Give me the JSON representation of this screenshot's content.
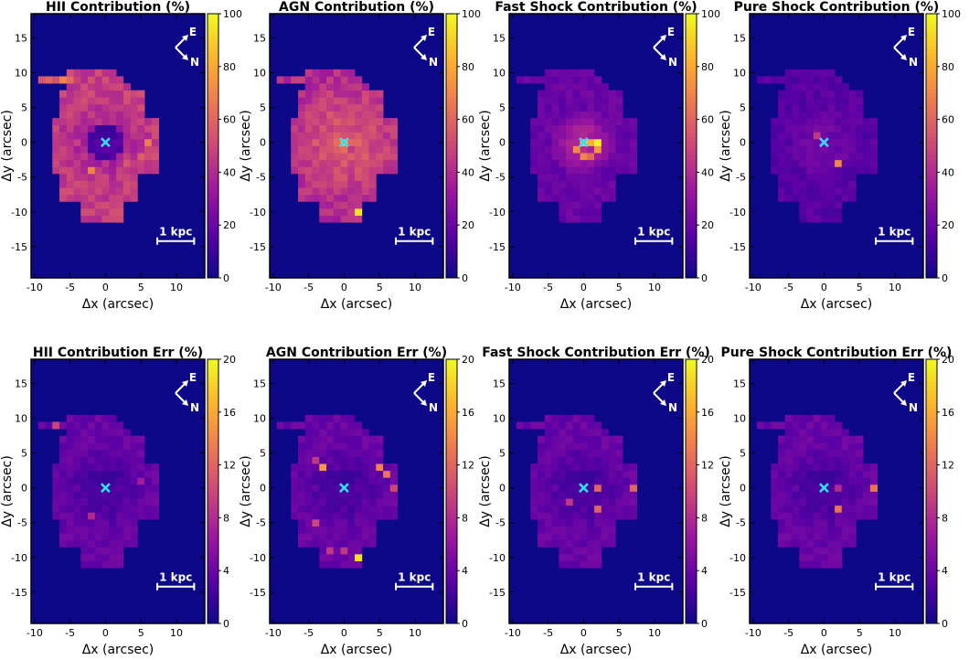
{
  "figure": {
    "compass": {
      "east": "E",
      "north": "N"
    },
    "center_marker": "×",
    "colors": {
      "marker": "#33ddff",
      "scalebar": "#ffffff",
      "background": "#0d0887"
    },
    "colormap": [
      "#0d0887",
      "#5c01a6",
      "#9c179e",
      "#cc4778",
      "#ed7953",
      "#fdb42f",
      "#f0f921"
    ]
  },
  "chart_data": [
    {
      "type": "heatmap",
      "title": "HII Contribution (%)",
      "xlabel": "Δx (arcsec)",
      "ylabel": "Δy (arcsec)",
      "xlim": [
        -10.5,
        14
      ],
      "ylim": [
        -19.5,
        18.5
      ],
      "xticks": [
        -10,
        -5,
        0,
        5,
        10
      ],
      "yticks": [
        15,
        10,
        5,
        0,
        -5,
        -10,
        -15
      ],
      "colorbar": {
        "min": 0,
        "max": 100,
        "ticks": [
          0,
          20,
          40,
          60,
          80,
          100
        ]
      },
      "scalebar_label": "1 kpc",
      "center": [
        0,
        0
      ],
      "field": "HII",
      "hotspots": [
        [
          -9,
          9,
          55
        ],
        [
          -8,
          9,
          60
        ],
        [
          -6,
          9,
          70
        ],
        [
          -5,
          9,
          62
        ],
        [
          -2,
          -4,
          70
        ],
        [
          6,
          0,
          68
        ],
        [
          5,
          -2,
          58
        ],
        [
          3,
          -3,
          55
        ]
      ]
    },
    {
      "type": "heatmap",
      "title": "AGN Contribution (%)",
      "xlabel": "Δx (arcsec)",
      "ylabel": "Δy (arcsec)",
      "xlim": [
        -10.5,
        14
      ],
      "ylim": [
        -19.5,
        18.5
      ],
      "xticks": [
        -10,
        -5,
        0,
        5,
        10
      ],
      "yticks": [
        15,
        10,
        5,
        0,
        -5,
        -10,
        -15
      ],
      "colorbar": {
        "min": 0,
        "max": 100,
        "ticks": [
          0,
          20,
          40,
          60,
          80,
          100
        ]
      },
      "scalebar_label": "1 kpc",
      "center": [
        0,
        0
      ],
      "field": "AGN",
      "hotspots": [
        [
          2,
          -10,
          95
        ],
        [
          0,
          0,
          85
        ],
        [
          -1,
          1,
          58
        ],
        [
          1,
          -1,
          45
        ],
        [
          -3,
          2,
          55
        ]
      ]
    },
    {
      "type": "heatmap",
      "title": "Fast Shock Contribution (%)",
      "xlabel": "Δx (arcsec)",
      "ylabel": "Δy (arcsec)",
      "xlim": [
        -10.5,
        14
      ],
      "ylim": [
        -19.5,
        18.5
      ],
      "xticks": [
        -10,
        -5,
        0,
        5,
        10
      ],
      "yticks": [
        15,
        10,
        5,
        0,
        -5,
        -10,
        -15
      ],
      "colorbar": {
        "min": 0,
        "max": 100,
        "ticks": [
          0,
          20,
          40,
          60,
          80,
          100
        ]
      },
      "scalebar_label": "1 kpc",
      "center": [
        0,
        0
      ],
      "field": "FAST",
      "hotspots": [
        [
          0,
          0,
          95
        ],
        [
          2,
          0,
          98
        ],
        [
          1,
          0,
          82
        ],
        [
          -1,
          -1,
          72
        ],
        [
          0,
          -2,
          70
        ],
        [
          1,
          -2,
          62
        ],
        [
          2,
          -1,
          75
        ]
      ]
    },
    {
      "type": "heatmap",
      "title": "Pure Shock Contribution (%)",
      "xlabel": "Δx (arcsec)",
      "ylabel": "Δy (arcsec)",
      "xlim": [
        -10.5,
        14
      ],
      "ylim": [
        -19.5,
        18.5
      ],
      "xticks": [
        -10,
        -5,
        0,
        5,
        10
      ],
      "yticks": [
        15,
        10,
        5,
        0,
        -5,
        -10,
        -15
      ],
      "colorbar": {
        "min": 0,
        "max": 100,
        "ticks": [
          0,
          20,
          40,
          60,
          80,
          100
        ]
      },
      "scalebar_label": "1 kpc",
      "center": [
        0,
        0
      ],
      "field": "PURE",
      "hotspots": [
        [
          2,
          -3,
          70
        ],
        [
          -1,
          1,
          45
        ]
      ]
    },
    {
      "type": "heatmap",
      "title": "HII Contribution Err (%)",
      "xlabel": "Δx (arcsec)",
      "ylabel": "Δy (arcsec)",
      "xlim": [
        -10.5,
        14
      ],
      "ylim": [
        -19.5,
        18.5
      ],
      "xticks": [
        -10,
        -5,
        0,
        5,
        10
      ],
      "yticks": [
        15,
        10,
        5,
        0,
        -5,
        -10,
        -15
      ],
      "colorbar": {
        "min": 0,
        "max": 20,
        "ticks": [
          0,
          4,
          8,
          12,
          16,
          20
        ]
      },
      "scalebar_label": "1 kpc",
      "center": [
        0,
        0
      ],
      "field": "ERR",
      "hotspots": [
        [
          -7,
          9,
          10
        ],
        [
          -2,
          -4,
          8
        ],
        [
          5,
          1,
          7
        ]
      ]
    },
    {
      "type": "heatmap",
      "title": "AGN Contribution Err (%)",
      "xlabel": "Δx (arcsec)",
      "ylabel": "Δy (arcsec)",
      "xlim": [
        -10.5,
        14
      ],
      "ylim": [
        -19.5,
        18.5
      ],
      "xticks": [
        -10,
        -5,
        0,
        5,
        10
      ],
      "yticks": [
        15,
        10,
        5,
        0,
        -5,
        -10,
        -15
      ],
      "colorbar": {
        "min": 0,
        "max": 20,
        "ticks": [
          0,
          4,
          8,
          12,
          16,
          20
        ]
      },
      "scalebar_label": "1 kpc",
      "center": [
        0,
        0
      ],
      "field": "ERR",
      "hotspots": [
        [
          2,
          -10,
          19
        ],
        [
          -3,
          3,
          15
        ],
        [
          5,
          3,
          14
        ],
        [
          6,
          2,
          13
        ],
        [
          -4,
          -5,
          10
        ],
        [
          -2,
          -9,
          9
        ],
        [
          0,
          -9,
          9
        ],
        [
          7,
          0,
          10
        ],
        [
          -4,
          4,
          9
        ]
      ]
    },
    {
      "type": "heatmap",
      "title": "Fast Shock Contribution Err (%)",
      "xlabel": "Δx (arcsec)",
      "ylabel": "Δy (arcsec)",
      "xlim": [
        -10.5,
        14
      ],
      "ylim": [
        -19.5,
        18.5
      ],
      "xticks": [
        -10,
        -5,
        0,
        5,
        10
      ],
      "yticks": [
        15,
        10,
        5,
        0,
        -5,
        -10,
        -15
      ],
      "colorbar": {
        "min": 0,
        "max": 20,
        "ticks": [
          0,
          4,
          8,
          12,
          16,
          20
        ]
      },
      "scalebar_label": "1 kpc",
      "center": [
        0,
        0
      ],
      "field": "ERR",
      "hotspots": [
        [
          2,
          0,
          12
        ],
        [
          7,
          0,
          12
        ],
        [
          2,
          -3,
          12
        ],
        [
          -2,
          -2,
          9
        ]
      ]
    },
    {
      "type": "heatmap",
      "title": "Pure Shock Contribution Err (%)",
      "xlabel": "Δx (arcsec)",
      "ylabel": "Δy (arcsec)",
      "xlim": [
        -10.5,
        14
      ],
      "ylim": [
        -19.5,
        18.5
      ],
      "xticks": [
        -10,
        -5,
        0,
        5,
        10
      ],
      "yticks": [
        15,
        10,
        5,
        0,
        -5,
        -10,
        -15
      ],
      "colorbar": {
        "min": 0,
        "max": 20,
        "ticks": [
          0,
          4,
          8,
          12,
          16,
          20
        ]
      },
      "scalebar_label": "1 kpc",
      "center": [
        0,
        0
      ],
      "field": "ERR",
      "hotspots": [
        [
          7,
          0,
          13
        ],
        [
          2,
          -3,
          13
        ],
        [
          2,
          0,
          8
        ]
      ]
    }
  ]
}
